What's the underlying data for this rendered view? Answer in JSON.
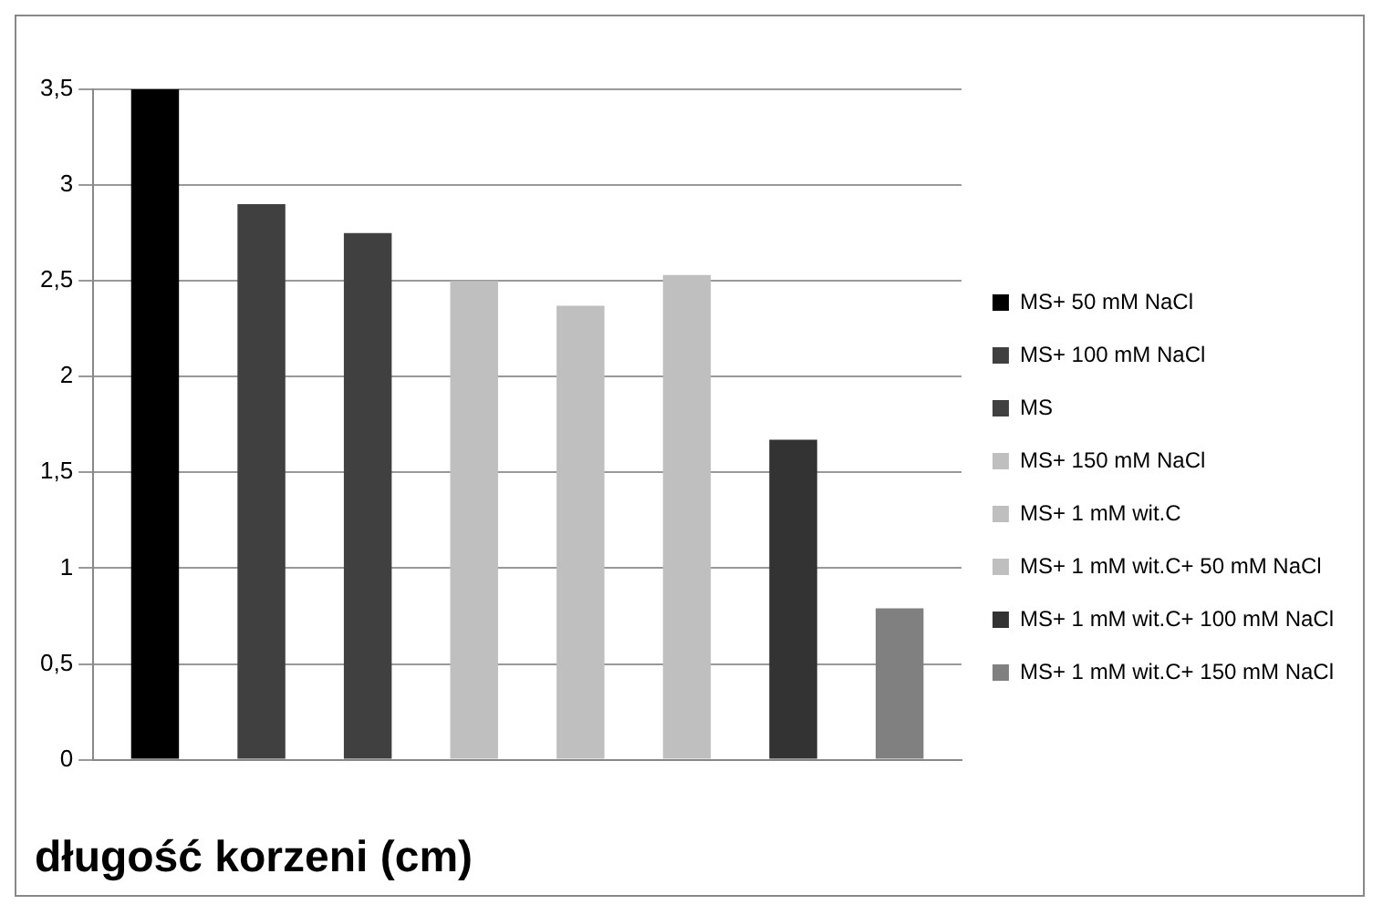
{
  "chart_data": {
    "type": "bar",
    "title": "długość korzeni (cm)",
    "categories": [
      null
    ],
    "series": [
      {
        "name": "MS+ 50 mM NaCl",
        "color": "#000000",
        "values": [
          3.5
        ]
      },
      {
        "name": "MS+ 100 mM NaCl",
        "color": "#404040",
        "values": [
          2.9
        ]
      },
      {
        "name": "MS",
        "color": "#404040",
        "values": [
          2.75
        ]
      },
      {
        "name": "MS+ 150 mM NaCl",
        "color": "#bfbfbf",
        "values": [
          2.5
        ]
      },
      {
        "name": "MS+ 1 mM wit.C",
        "color": "#bfbfbf",
        "values": [
          2.37
        ]
      },
      {
        "name": "MS+ 1 mM wit.C+ 50 mM NaCl",
        "color": "#bfbfbf",
        "values": [
          2.53
        ]
      },
      {
        "name": "MS+ 1 mM wit.C+ 100 mM NaCl",
        "color": "#333333",
        "values": [
          1.67
        ]
      },
      {
        "name": "MS+ 1 mM wit.C+ 150 mM NaCl",
        "color": "#808080",
        "values": [
          0.79
        ]
      }
    ],
    "ylim": [
      0,
      3.5
    ],
    "yticks": [
      0,
      {
        "value": 0.5,
        "label": "0,5"
      },
      1,
      {
        "value": 1.5,
        "label": "1,5"
      },
      2,
      {
        "value": 2.5,
        "label": "2,5"
      },
      3,
      {
        "value": 3.5,
        "label": "3,5"
      }
    ],
    "grid": "y",
    "legend": "right"
  }
}
